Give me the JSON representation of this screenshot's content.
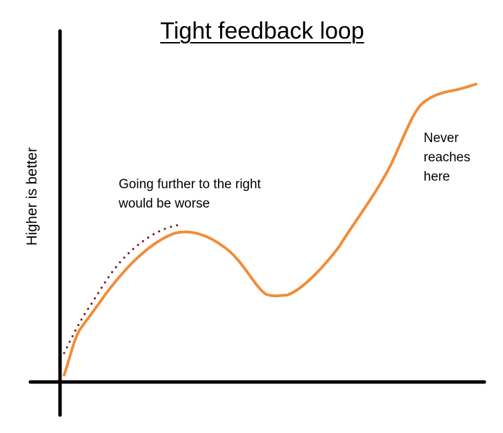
{
  "title": "Tight feedback loop",
  "y_axis_label": "Higher is better",
  "annotations": {
    "left_line1": "Going further to the right",
    "left_line2": "would be worse",
    "right_line1": "Never",
    "right_line2": "reaches",
    "right_line3": "here"
  },
  "colors": {
    "axis": "#000000",
    "main_curve": "#f28c38",
    "dotted_curve": "#7a0f1c",
    "text": "#000000"
  }
}
